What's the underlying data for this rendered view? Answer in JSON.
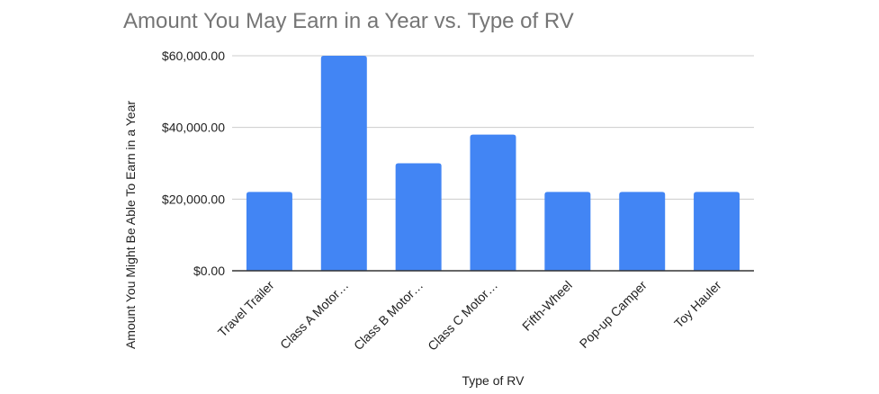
{
  "chart_data": {
    "type": "bar",
    "title": "Amount You May Earn in a Year vs. Type of RV",
    "xlabel": "Type of RV",
    "ylabel": "Amount You Might Be Able To Earn in a Year",
    "categories": [
      "Travel Trailer",
      "Class A Motor…",
      "Class B Motor…",
      "Class C Motor…",
      "Fifth-Wheel",
      "Pop-up Camper",
      "Toy Hauler"
    ],
    "values": [
      22000,
      60000,
      30000,
      38000,
      22000,
      22000,
      22000
    ],
    "ylim": [
      0,
      60000
    ],
    "y_ticks": [
      0,
      20000,
      40000,
      60000
    ],
    "y_tick_labels": [
      "$0.00",
      "$20,000.00",
      "$40,000.00",
      "$60,000.00"
    ],
    "grid": true,
    "legend": "none",
    "colors": {
      "bar": "#4285f4",
      "grid": "#cccccc",
      "axis": "#333333",
      "title": "#757575",
      "text": "#222222"
    }
  }
}
